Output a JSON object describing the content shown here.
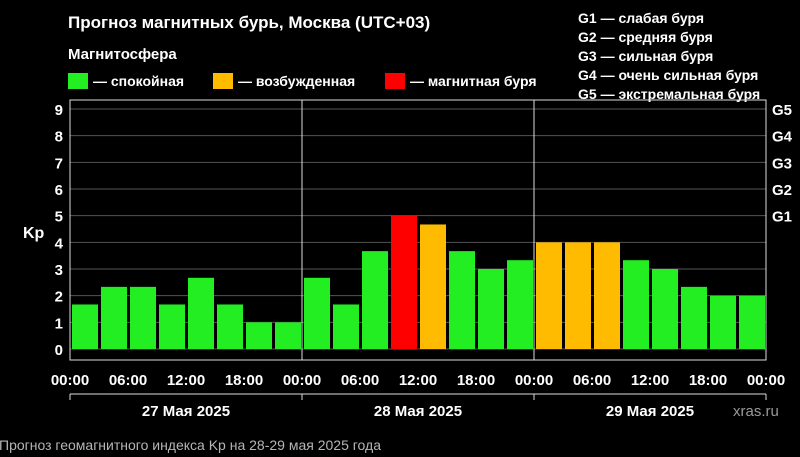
{
  "title": "Прогноз магнитных бурь, Москва (UTC+03)",
  "legend": {
    "title": "Магнитосфера",
    "items": [
      {
        "label": "— спокойная",
        "color": "#22ee22"
      },
      {
        "label": "— возбужденная",
        "color": "#ffbb00"
      },
      {
        "label": "— магнитная буря",
        "color": "#ff0000"
      }
    ]
  },
  "storm_scale": [
    "G1 — слабая буря",
    "G2 — средняя буря",
    "G3 — сильная буря",
    "G4 — очень сильная буря",
    "G5 — экстремальная буря"
  ],
  "watermark": "xras.ru",
  "caption": "Прогноз геомагнитного индекса Kp на 28-29 мая 2025 года",
  "chart_data": {
    "type": "bar",
    "ylabel": "Kp",
    "ylim": [
      0,
      9
    ],
    "yticks": [
      "0",
      "1",
      "2",
      "3",
      "4",
      "5",
      "6",
      "7",
      "8",
      "9"
    ],
    "right_ticks": [
      {
        "kp": 5,
        "label": "G1"
      },
      {
        "kp": 6,
        "label": "G2"
      },
      {
        "kp": 7,
        "label": "G3"
      },
      {
        "kp": 8,
        "label": "G4"
      },
      {
        "kp": 9,
        "label": "G5"
      }
    ],
    "x_tick_labels": [
      "00:00",
      "06:00",
      "12:00",
      "18:00",
      "00:00",
      "06:00",
      "12:00",
      "18:00",
      "00:00",
      "06:00",
      "12:00",
      "18:00",
      "00:00"
    ],
    "days": [
      "27 Мая 2025",
      "28 Мая 2025",
      "29 Мая 2025"
    ],
    "grid": true,
    "values": [
      1.67,
      2.33,
      2.33,
      1.67,
      2.67,
      1.67,
      1.0,
      1.0,
      2.67,
      1.67,
      3.67,
      5.0,
      4.67,
      3.67,
      3.0,
      3.33,
      4.0,
      4.0,
      4.0,
      3.33,
      3.0,
      2.33,
      2.0,
      2.0
    ],
    "bar_colors": [
      "#22ee22",
      "#22ee22",
      "#22ee22",
      "#22ee22",
      "#22ee22",
      "#22ee22",
      "#22ee22",
      "#22ee22",
      "#22ee22",
      "#22ee22",
      "#22ee22",
      "#ff0000",
      "#ffbb00",
      "#22ee22",
      "#22ee22",
      "#22ee22",
      "#ffbb00",
      "#ffbb00",
      "#ffbb00",
      "#22ee22",
      "#22ee22",
      "#22ee22",
      "#22ee22",
      "#22ee22"
    ]
  }
}
